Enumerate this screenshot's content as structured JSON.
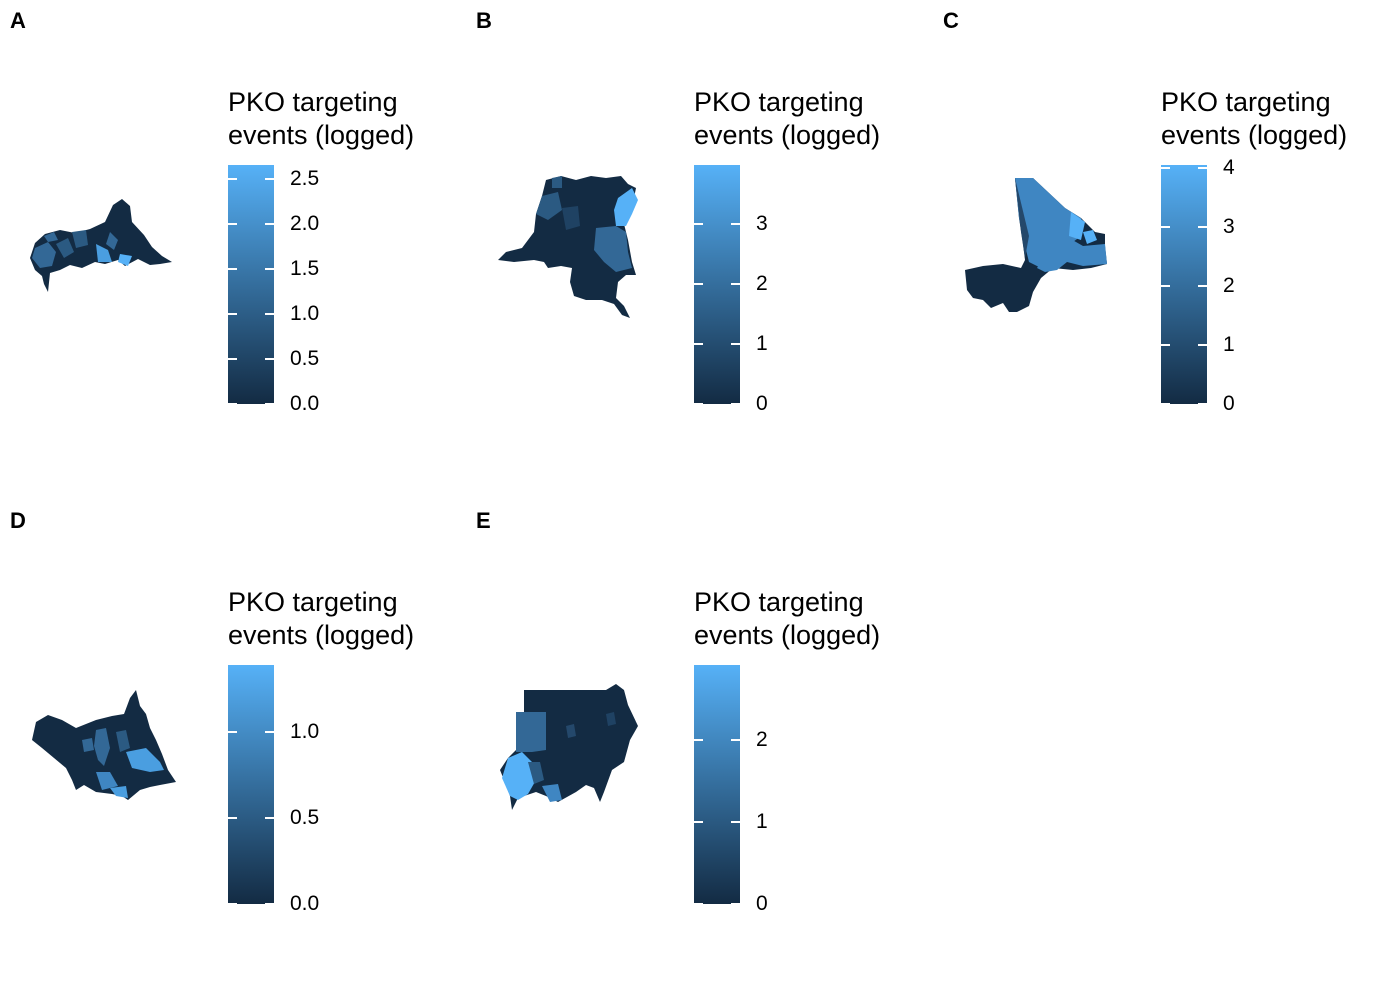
{
  "colors": {
    "low": "#132b43",
    "high": "#56b1f7",
    "background": "#ffffff"
  },
  "panels": [
    {
      "id": "A",
      "country": "Central African Republic",
      "legend_line1": "PKO targeting",
      "legend_line2": "events (logged)",
      "ticks": [
        {
          "value": 0.0,
          "label": "0.0"
        },
        {
          "value": 0.5,
          "label": "0.5"
        },
        {
          "value": 1.0,
          "label": "1.0"
        },
        {
          "value": 1.5,
          "label": "1.5"
        },
        {
          "value": 2.0,
          "label": "2.0"
        },
        {
          "value": 2.5,
          "label": "2.5"
        }
      ],
      "scale_min": 0,
      "scale_max": 2.65
    },
    {
      "id": "B",
      "country": "Democratic Republic of the Congo",
      "legend_line1": "PKO targeting",
      "legend_line2": "events (logged)",
      "ticks": [
        {
          "value": 0,
          "label": "0"
        },
        {
          "value": 1,
          "label": "1"
        },
        {
          "value": 2,
          "label": "2"
        },
        {
          "value": 3,
          "label": "3"
        }
      ],
      "scale_min": 0,
      "scale_max": 3.97
    },
    {
      "id": "C",
      "country": "Mali",
      "legend_line1": "PKO targeting",
      "legend_line2": "events (logged)",
      "ticks": [
        {
          "value": 0,
          "label": "0"
        },
        {
          "value": 1,
          "label": "1"
        },
        {
          "value": 2,
          "label": "2"
        },
        {
          "value": 3,
          "label": "3"
        },
        {
          "value": 4,
          "label": "4"
        }
      ],
      "scale_min": 0,
      "scale_max": 4.0
    },
    {
      "id": "D",
      "country": "South Sudan",
      "legend_line1": "PKO targeting",
      "legend_line2": "events (logged)",
      "ticks": [
        {
          "value": 0.0,
          "label": "0.0"
        },
        {
          "value": 0.5,
          "label": "0.5"
        },
        {
          "value": 1.0,
          "label": "1.0"
        }
      ],
      "scale_min": 0,
      "scale_max": 1.39
    },
    {
      "id": "E",
      "country": "Sudan",
      "legend_line1": "PKO targeting",
      "legend_line2": "events (logged)",
      "ticks": [
        {
          "value": 0,
          "label": "0"
        },
        {
          "value": 1,
          "label": "1"
        },
        {
          "value": 2,
          "label": "2"
        }
      ],
      "scale_min": 0,
      "scale_max": 2.89
    }
  ]
}
